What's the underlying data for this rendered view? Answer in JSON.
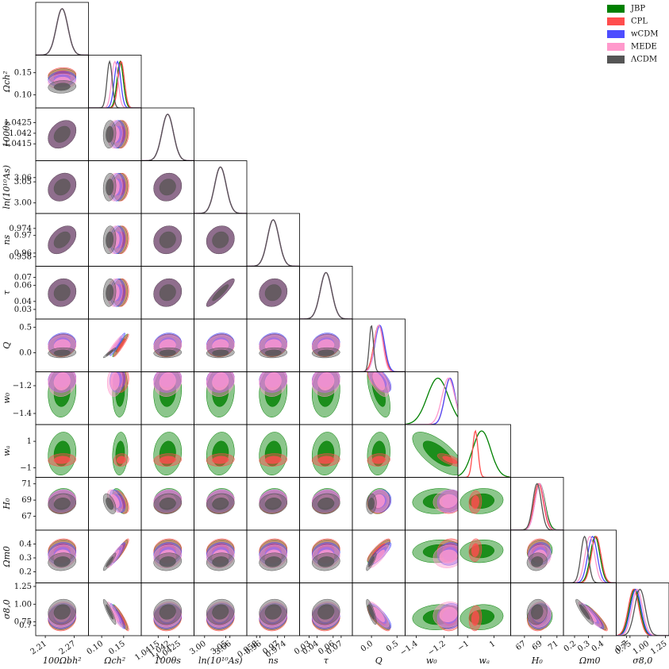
{
  "chart_data": {
    "type": "corner",
    "legend": "upper right",
    "series": [
      {
        "name": "JBP",
        "color": "#008000"
      },
      {
        "name": "CPL",
        "color": "#ff4d4d"
      },
      {
        "name": "wCDM",
        "color": "#4d4dff"
      },
      {
        "name": "MEDE",
        "color": "#ff99cc"
      },
      {
        "name": "ΛCDM",
        "color": "#555555"
      }
    ],
    "parameters": [
      {
        "label": "100Ωbh²",
        "lim": [
          2.19,
          2.3
        ],
        "ticks": [
          2.21,
          2.27
        ]
      },
      {
        "label": "Ωch²",
        "lim": [
          0.07,
          0.19
        ],
        "ticks": [
          {
            "value": 0.1,
            "label": "0.10"
          },
          0.15
        ]
      },
      {
        "label": "100θs",
        "lim": [
          1.0407,
          1.0432
        ],
        "ticks": [
          1.0415,
          1.042,
          1.0425
        ]
      },
      {
        "label": "ln(10¹⁰As)",
        "lim": [
          2.975,
          3.1
        ],
        "ticks": [
          {
            "value": 3,
            "label": "3.00"
          },
          3.05,
          3.06
        ]
      },
      {
        "label": "ns",
        "lim": [
          0.9525,
          0.9825
        ],
        "ticks": [
          0.958,
          0.96,
          0.97,
          0.974
        ]
      },
      {
        "label": "τ",
        "lim": [
          0.018,
          0.084
        ],
        "ticks": [
          0.03,
          0.04,
          0.06,
          0.07
        ]
      },
      {
        "label": "Q",
        "lim": [
          -0.375,
          0.66
        ],
        "ticks": [
          {
            "value": 0,
            "label": "0.0"
          },
          0.5
        ]
      },
      {
        "label": "w₀",
        "lim": [
          -1.48,
          -1.1
        ],
        "ticks": [
          {
            "value": -1.4,
            "label": "−1.4"
          },
          {
            "value": -1.2,
            "label": "−1.2"
          }
        ]
      },
      {
        "label": "wₐ",
        "lim": [
          -1.73,
          2.27
        ],
        "ticks": [
          {
            "value": -1,
            "label": "−1"
          },
          1
        ]
      },
      {
        "label": "H₀",
        "lim": [
          65.3,
          71.8
        ],
        "ticks": [
          67,
          69,
          71
        ]
      },
      {
        "label": "Ωm0",
        "lim": [
          0.12,
          0.5
        ],
        "ticks": [
          0.2,
          0.3,
          0.4
        ]
      },
      {
        "label": "σ8,0",
        "lim": [
          0.556,
          1.3
        ],
        "ticks": [
          0.7,
          0.75,
          {
            "value": 1,
            "label": "1.00"
          },
          1.25
        ]
      }
    ]
  }
}
